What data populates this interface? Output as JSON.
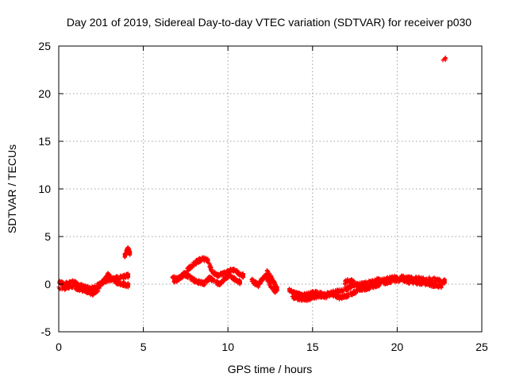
{
  "chart_data": {
    "type": "scatter",
    "title": "Day 201 of 2019, Sidereal Day-to-day VTEC variation (SDTVAR) for receiver p030",
    "xlabel": "GPS time / hours",
    "ylabel": "SDTVAR / TECUs",
    "xlim": [
      0,
      25
    ],
    "ylim": [
      -5,
      25
    ],
    "xticks": [
      0,
      5,
      10,
      15,
      20,
      25
    ],
    "yticks": [
      -5,
      0,
      5,
      10,
      15,
      20,
      25
    ],
    "xtick_labels": [
      "0",
      "5",
      "10",
      "15",
      "20",
      "25"
    ],
    "ytick_labels": [
      "-5",
      "0",
      "5",
      "10",
      "15",
      "20",
      "25"
    ],
    "grid": true,
    "marker": "plus",
    "color": "#ff0000",
    "segments": [
      {
        "name": "track-a",
        "x": [
          0.0,
          0.3,
          0.6,
          0.9,
          1.2,
          1.5,
          1.8,
          2.1,
          2.4,
          2.7,
          3.0,
          3.3,
          3.6,
          3.9,
          4.1
        ],
        "y": [
          0.2,
          0.0,
          0.1,
          0.2,
          -0.1,
          -0.3,
          -0.5,
          -0.4,
          0.0,
          0.3,
          0.5,
          0.6,
          0.7,
          0.8,
          0.9
        ]
      },
      {
        "name": "track-b",
        "x": [
          0.0,
          0.4,
          0.8,
          1.2,
          1.6,
          2.0,
          2.3,
          2.6,
          2.9,
          3.2,
          3.5,
          3.8,
          4.1
        ],
        "y": [
          -0.3,
          -0.4,
          -0.2,
          -0.5,
          -0.7,
          -1.0,
          -0.6,
          0.2,
          1.0,
          0.5,
          0.1,
          0.0,
          -0.1
        ]
      },
      {
        "name": "track-c",
        "x": [
          3.9,
          4.0,
          4.1,
          4.2
        ],
        "y": [
          3.0,
          3.4,
          3.7,
          3.3
        ]
      },
      {
        "name": "track-d",
        "x": [
          6.7,
          7.0,
          7.3,
          7.6,
          7.9,
          8.2,
          8.5,
          8.8,
          9.1,
          9.4,
          9.7,
          10.0,
          10.3,
          10.6,
          10.9
        ],
        "y": [
          0.8,
          0.5,
          0.9,
          1.5,
          2.0,
          2.4,
          2.7,
          2.5,
          1.2,
          0.9,
          1.1,
          1.3,
          1.5,
          1.2,
          0.9
        ]
      },
      {
        "name": "track-e",
        "x": [
          6.8,
          7.1,
          7.4,
          7.7,
          8.0,
          8.3,
          8.6,
          8.9,
          9.2,
          9.5,
          9.8,
          10.1,
          10.4,
          10.7
        ],
        "y": [
          0.3,
          0.6,
          1.0,
          0.8,
          0.4,
          0.2,
          0.1,
          0.6,
          0.3,
          0.0,
          0.6,
          0.9,
          0.5,
          0.2
        ]
      },
      {
        "name": "track-f",
        "x": [
          11.4,
          11.6,
          11.8,
          12.0,
          12.2,
          12.4,
          12.6,
          12.8
        ],
        "y": [
          0.4,
          0.1,
          -0.1,
          0.5,
          0.9,
          0.3,
          -0.4,
          -0.7
        ]
      },
      {
        "name": "track-g",
        "x": [
          12.3,
          12.5,
          12.7,
          12.9
        ],
        "y": [
          1.3,
          0.8,
          0.2,
          -0.5
        ]
      },
      {
        "name": "track-h",
        "x": [
          13.6,
          14.0,
          14.4,
          14.8,
          15.2,
          15.6,
          16.0,
          16.4,
          16.8,
          17.2,
          17.6,
          18.0,
          18.4,
          18.8,
          19.2,
          19.6,
          20.0,
          20.4,
          20.8,
          21.2,
          21.6,
          22.0,
          22.4,
          22.8
        ],
        "y": [
          -0.6,
          -1.0,
          -1.2,
          -1.0,
          -0.9,
          -1.1,
          -1.0,
          -0.8,
          -0.6,
          -0.3,
          -0.1,
          0.0,
          0.2,
          0.4,
          0.5,
          0.6,
          0.7,
          0.7,
          0.6,
          0.6,
          0.5,
          0.5,
          0.4,
          0.3
        ]
      },
      {
        "name": "track-i",
        "x": [
          13.8,
          14.2,
          14.6,
          15.0,
          15.4,
          15.8,
          16.2,
          16.6,
          17.0,
          17.4,
          17.8,
          18.2,
          18.6,
          19.0,
          19.4,
          19.8,
          20.2,
          20.6,
          21.0,
          21.4,
          21.8,
          22.2,
          22.6
        ],
        "y": [
          -1.3,
          -1.5,
          -1.6,
          -1.4,
          -1.2,
          -1.3,
          -1.1,
          -1.4,
          -1.2,
          -0.9,
          -0.6,
          -0.4,
          -0.2,
          0.0,
          0.2,
          0.4,
          0.5,
          0.3,
          0.2,
          0.1,
          0.0,
          -0.1,
          -0.2
        ]
      },
      {
        "name": "track-j",
        "x": [
          16.9,
          17.2,
          17.5,
          17.8,
          18.1,
          18.4
        ],
        "y": [
          0.2,
          0.4,
          0.1,
          -0.3,
          -0.5,
          -0.2
        ]
      },
      {
        "name": "outlier",
        "x": [
          22.7,
          22.85
        ],
        "y": [
          23.6,
          23.7
        ]
      }
    ]
  }
}
